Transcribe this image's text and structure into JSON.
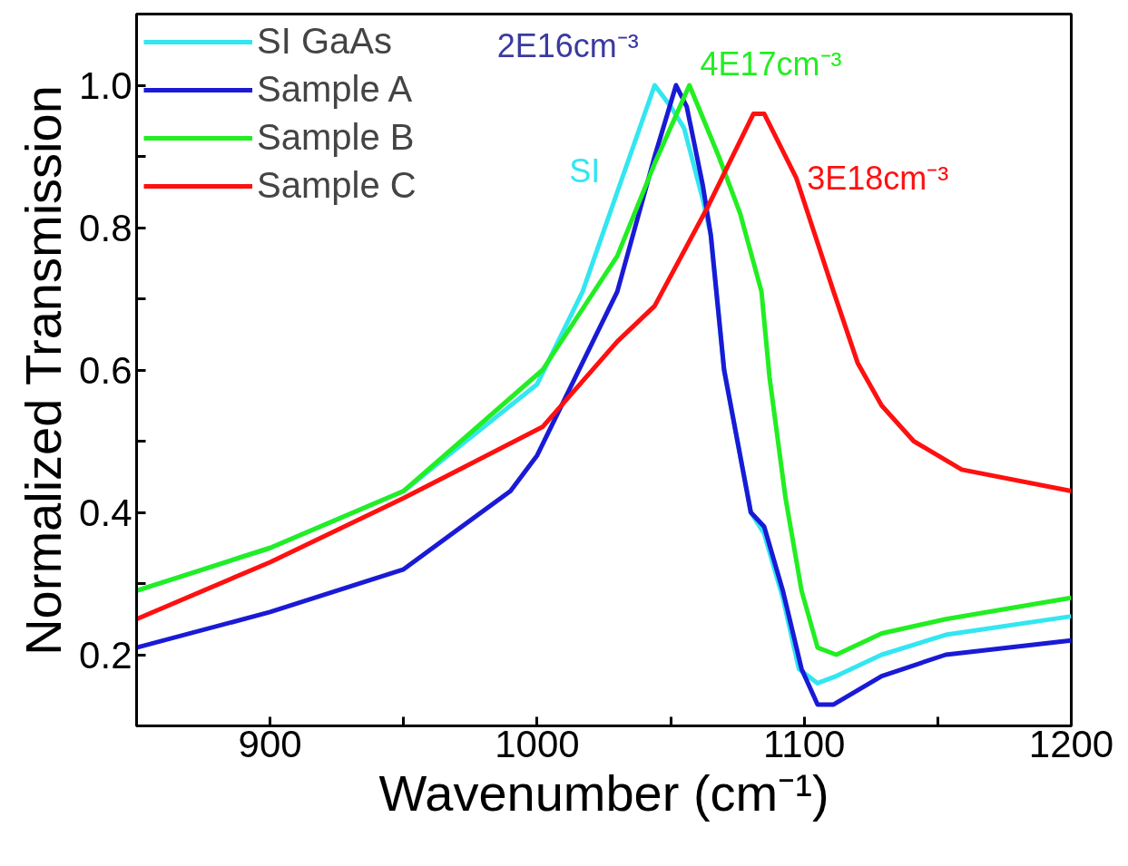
{
  "chart_data": {
    "type": "line",
    "xlabel": "Wavenumber (cm⁻¹)",
    "ylabel": "Normalized Transmission",
    "xlim": [
      850,
      1200
    ],
    "ylim": [
      0.1,
      1.1
    ],
    "xticks": [
      {
        "value": 850,
        "label": null
      },
      {
        "value": 900,
        "label": "900"
      },
      {
        "value": 950,
        "label": null
      },
      {
        "value": 1000,
        "label": "1000"
      },
      {
        "value": 1050,
        "label": null
      },
      {
        "value": 1100,
        "label": "1100"
      },
      {
        "value": 1150,
        "label": null
      },
      {
        "value": 1200,
        "label": "1200"
      }
    ],
    "yticks": [
      {
        "value": 0.2,
        "label": "0.2"
      },
      {
        "value": 0.3,
        "label": null
      },
      {
        "value": 0.4,
        "label": "0.4"
      },
      {
        "value": 0.5,
        "label": null
      },
      {
        "value": 0.6,
        "label": "0.6"
      },
      {
        "value": 0.7,
        "label": null
      },
      {
        "value": 0.8,
        "label": "0.8"
      },
      {
        "value": 0.9,
        "label": null
      },
      {
        "value": 1.0,
        "label": "1.0"
      }
    ],
    "grid": false,
    "legend": "top left",
    "marker": "none",
    "line_style": "solid",
    "series": [
      {
        "name": "SI GaAs",
        "color": "#33e6f0",
        "x": [
          850,
          900,
          950,
          1000,
          1017,
          1030,
          1044,
          1050,
          1055,
          1062,
          1065,
          1070,
          1080,
          1085,
          1092,
          1098,
          1105,
          1112,
          1129,
          1153,
          1200
        ],
        "values": [
          0.29,
          0.35,
          0.43,
          0.58,
          0.71,
          0.85,
          1.0,
          0.97,
          0.94,
          0.84,
          0.79,
          0.6,
          0.4,
          0.37,
          0.28,
          0.18,
          0.16,
          0.17,
          0.2,
          0.228,
          0.254
        ]
      },
      {
        "name": "Sample A",
        "color": "#1a1ad6",
        "x": [
          850,
          900,
          950,
          990,
          1000,
          1030,
          1044,
          1052,
          1056,
          1062,
          1065,
          1070,
          1080,
          1085,
          1092,
          1099,
          1105,
          1111,
          1129,
          1153,
          1200
        ],
        "values": [
          0.21,
          0.26,
          0.32,
          0.43,
          0.48,
          0.71,
          0.9,
          1.0,
          0.97,
          0.86,
          0.79,
          0.6,
          0.4,
          0.38,
          0.29,
          0.18,
          0.13,
          0.13,
          0.17,
          0.2,
          0.22
        ]
      },
      {
        "name": "Sample B",
        "color": "#22ee22",
        "x": [
          850,
          900,
          950,
          1002,
          1030,
          1044,
          1057,
          1068,
          1076,
          1084,
          1087,
          1093,
          1099,
          1105,
          1112,
          1129,
          1153,
          1200
        ],
        "values": [
          0.29,
          0.35,
          0.43,
          0.6,
          0.76,
          0.89,
          1.0,
          0.9,
          0.82,
          0.71,
          0.59,
          0.42,
          0.29,
          0.21,
          0.2,
          0.23,
          0.25,
          0.28
        ]
      },
      {
        "name": "Sample C",
        "color": "#ff1010",
        "x": [
          850,
          900,
          950,
          1002,
          1030,
          1044,
          1064,
          1081,
          1085,
          1097,
          1111,
          1120,
          1129,
          1141,
          1159,
          1200
        ],
        "values": [
          0.25,
          0.33,
          0.42,
          0.52,
          0.64,
          0.69,
          0.83,
          0.96,
          0.96,
          0.87,
          0.71,
          0.61,
          0.55,
          0.5,
          0.46,
          0.43
        ]
      }
    ],
    "annotations": [
      "SI",
      "2E16cm⁻³",
      "4E17cm⁻³",
      "3E18cm⁻³"
    ]
  }
}
